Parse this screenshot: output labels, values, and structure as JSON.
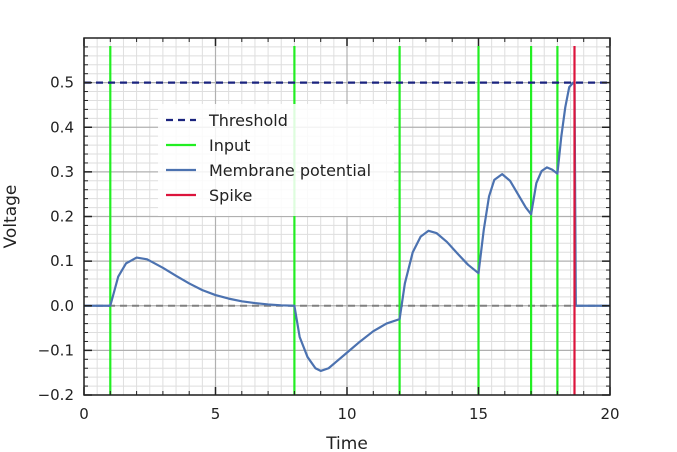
{
  "chart_data": {
    "type": "line",
    "xlabel": "Time",
    "ylabel": "Voltage",
    "xlim": [
      0,
      20
    ],
    "ylim": [
      -0.2,
      0.6
    ],
    "xticks": [
      0,
      5,
      10,
      15,
      20
    ],
    "yticks": [
      -0.2,
      -0.1,
      0.0,
      0.1,
      0.2,
      0.3,
      0.4,
      0.5
    ],
    "ytick_labels": [
      "−0.2",
      "−0.1",
      "0.0",
      "0.1",
      "0.2",
      "0.3",
      "0.4",
      "0.5"
    ],
    "xtick_labels": [
      "0",
      "5",
      "10",
      "15",
      "20"
    ],
    "grid": true,
    "threshold": 0.5,
    "zero_line": 0.0,
    "input_times": [
      1,
      8,
      12,
      15,
      17,
      18
    ],
    "spike_times": [
      18.65
    ],
    "series": [
      {
        "name": "Membrane potential",
        "color": "#4c72b0",
        "x": [
          0,
          1,
          1.3,
          1.6,
          2.0,
          2.4,
          3.0,
          3.5,
          4.0,
          4.5,
          5.0,
          5.5,
          6.0,
          6.5,
          7.0,
          7.5,
          8.0,
          8.2,
          8.5,
          8.8,
          9.0,
          9.3,
          9.6,
          10.0,
          10.5,
          11.0,
          11.5,
          12.0,
          12.2,
          12.5,
          12.8,
          13.1,
          13.4,
          13.8,
          14.2,
          14.6,
          15.0,
          15.2,
          15.4,
          15.6,
          15.9,
          16.2,
          16.5,
          16.8,
          17.0,
          17.2,
          17.4,
          17.6,
          17.8,
          18.0,
          18.15,
          18.3,
          18.45,
          18.6,
          18.65,
          18.7,
          20.0
        ],
        "values": [
          0.0,
          0.0,
          0.065,
          0.095,
          0.108,
          0.104,
          0.085,
          0.067,
          0.05,
          0.035,
          0.024,
          0.016,
          0.01,
          0.006,
          0.003,
          0.001,
          0.0,
          -0.07,
          -0.115,
          -0.14,
          -0.146,
          -0.14,
          -0.125,
          -0.105,
          -0.08,
          -0.057,
          -0.04,
          -0.03,
          0.05,
          0.12,
          0.155,
          0.168,
          0.163,
          0.143,
          0.117,
          0.092,
          0.073,
          0.17,
          0.245,
          0.282,
          0.295,
          0.28,
          0.25,
          0.22,
          0.205,
          0.275,
          0.302,
          0.31,
          0.305,
          0.296,
          0.38,
          0.445,
          0.49,
          0.5,
          0.5,
          0.0,
          0.0
        ]
      }
    ],
    "legend": {
      "placement": "upper-left-center",
      "entries": [
        {
          "label": "Threshold",
          "color": "#1a237e",
          "style": "dashed"
        },
        {
          "label": "Input",
          "color": "#22ee22",
          "style": "solid"
        },
        {
          "label": "Membrane potential",
          "color": "#4c72b0",
          "style": "solid"
        },
        {
          "label": "Spike",
          "color": "#dc143c",
          "style": "solid"
        }
      ]
    },
    "colors": {
      "threshold": "#1a237e",
      "input": "#22ee22",
      "membrane": "#4c72b0",
      "spike": "#dc143c",
      "zero_line": "#808080",
      "grid_major": "#b0b0b0",
      "grid_minor": "#dedede"
    }
  }
}
